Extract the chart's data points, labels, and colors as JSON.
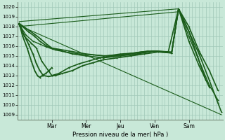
{
  "bg_color": "#c8e8d8",
  "grid_color": "#a0c8b8",
  "line_color": "#1a5c1a",
  "title": "Pression niveau de la mer( hPa )",
  "ylabel_ticks": [
    1009,
    1010,
    1011,
    1012,
    1013,
    1014,
    1015,
    1016,
    1017,
    1018,
    1019,
    1020
  ],
  "day_labels": [
    "Mar",
    "Mer",
    "Jeu",
    "Ven",
    "Sam"
  ],
  "xlim": [
    0,
    6.0
  ],
  "ylim": [
    1008.5,
    1020.5
  ],
  "series": [
    {
      "x": [
        0.05,
        0.5,
        0.65,
        0.85,
        1.0,
        1.5,
        2.0,
        2.5,
        3.0,
        3.5,
        4.0,
        4.5,
        4.7,
        5.0,
        5.3,
        5.6,
        5.85
      ],
      "y": [
        1018.3,
        1017.2,
        1016.8,
        1016.2,
        1015.8,
        1015.5,
        1015.2,
        1015.0,
        1015.1,
        1015.3,
        1015.5,
        1015.4,
        1019.8,
        1018.0,
        1015.5,
        1013.5,
        1011.5
      ],
      "lw": 1.2,
      "marker": "+"
    },
    {
      "x": [
        0.05,
        0.3,
        0.5,
        0.65,
        0.85,
        1.0,
        1.3,
        1.6,
        2.0,
        2.5,
        3.0,
        3.5,
        4.0,
        4.5,
        4.7,
        5.0,
        5.3,
        5.6,
        5.85,
        5.95
      ],
      "y": [
        1018.3,
        1017.5,
        1017.0,
        1016.5,
        1016.0,
        1015.8,
        1015.5,
        1015.2,
        1015.0,
        1014.8,
        1015.0,
        1015.2,
        1015.5,
        1015.3,
        1019.8,
        1017.5,
        1015.2,
        1012.5,
        1010.2,
        1009.3
      ],
      "lw": 1.2,
      "marker": "+"
    },
    {
      "x": [
        0.05,
        0.25,
        0.45,
        0.65,
        0.85,
        1.1,
        1.4,
        1.8,
        2.2,
        2.6,
        3.0,
        3.4,
        3.8,
        4.2,
        4.5,
        4.7,
        5.0,
        5.3,
        5.6,
        5.85
      ],
      "y": [
        1018.2,
        1017.1,
        1016.5,
        1016.2,
        1015.9,
        1015.6,
        1015.4,
        1015.2,
        1015.1,
        1015.0,
        1015.2,
        1015.3,
        1015.5,
        1015.4,
        1015.3,
        1019.8,
        1017.0,
        1014.5,
        1012.0,
        1010.5
      ],
      "lw": 1.0,
      "marker": "+"
    },
    {
      "x": [
        0.05,
        0.2,
        0.4,
        0.55,
        0.7,
        0.9,
        1.0,
        1.2,
        1.5,
        1.8,
        2.1,
        2.4,
        2.8,
        3.2,
        3.6,
        4.0,
        4.4,
        4.7,
        5.0,
        5.3,
        5.6
      ],
      "y": [
        1018.2,
        1017.0,
        1016.3,
        1015.8,
        1014.5,
        1013.5,
        1013.0,
        1013.2,
        1013.8,
        1014.2,
        1014.5,
        1014.8,
        1015.0,
        1015.2,
        1015.4,
        1015.5,
        1015.4,
        1019.8,
        1016.5,
        1014.0,
        1011.8
      ],
      "lw": 1.2,
      "marker": "+"
    },
    {
      "x": [
        0.05,
        0.18,
        0.32,
        0.45,
        0.55,
        0.65,
        0.75,
        0.9,
        1.1,
        1.3,
        1.6,
        1.9,
        2.2,
        2.5,
        2.9,
        3.3,
        3.7,
        4.1,
        4.5,
        4.7,
        5.0,
        5.25,
        5.5
      ],
      "y": [
        1018.3,
        1017.2,
        1016.2,
        1015.2,
        1014.2,
        1013.5,
        1013.0,
        1012.9,
        1013.0,
        1013.2,
        1013.5,
        1014.0,
        1014.3,
        1014.6,
        1014.8,
        1015.0,
        1015.2,
        1015.4,
        1015.3,
        1019.8,
        1017.5,
        1015.0,
        1012.5
      ],
      "lw": 1.3,
      "marker": "+"
    },
    {
      "x": [
        0.05,
        0.15,
        0.28,
        0.4,
        0.5,
        0.58,
        0.65,
        0.72,
        0.82,
        0.92,
        1.0
      ],
      "y": [
        1018.3,
        1017.0,
        1015.8,
        1014.5,
        1013.5,
        1013.0,
        1012.8,
        1013.0,
        1013.2,
        1013.5,
        1013.8
      ],
      "lw": 1.3,
      "marker": "+"
    },
    {
      "x": [
        0.05,
        4.7
      ],
      "y": [
        1018.5,
        1019.8
      ],
      "lw": 0.8,
      "marker": null
    },
    {
      "x": [
        0.05,
        4.7
      ],
      "y": [
        1018.0,
        1019.5
      ],
      "lw": 0.8,
      "marker": null
    },
    {
      "x": [
        0.05,
        5.95
      ],
      "y": [
        1018.1,
        1009.0
      ],
      "lw": 0.8,
      "marker": null
    }
  ],
  "n_vert_grid": 60,
  "figsize": [
    3.2,
    2.0
  ],
  "dpi": 100
}
